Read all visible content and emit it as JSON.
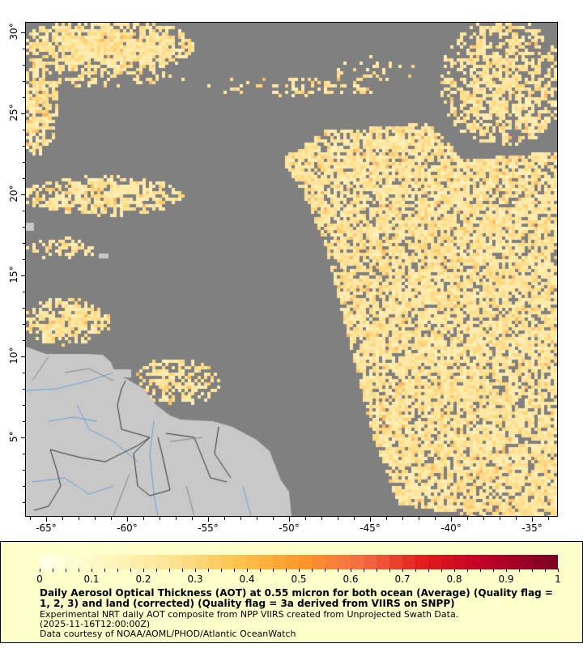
{
  "map": {
    "lon_range": [
      -66.25,
      -33.45
    ],
    "lat_range": [
      0.15,
      30.6
    ],
    "colors": {
      "ocean_nodata": "#808080",
      "land": "#c8c8c8",
      "rivers": "#6aa0d8",
      "borders": "#333333"
    },
    "lat_ticks": [
      "30°",
      "25°",
      "20°",
      "15°",
      "10°",
      "5°"
    ],
    "lat_values": [
      30,
      25,
      20,
      15,
      10,
      5
    ],
    "lon_ticks": [
      "-65°",
      "-60°",
      "-55°",
      "-50°",
      "-45°",
      "-40°",
      "-35°"
    ],
    "lon_values": [
      -65,
      -60,
      -55,
      -50,
      -45,
      -40,
      -35
    ]
  },
  "legend": {
    "colorbar_range": [
      0,
      1
    ],
    "colorbar_colors": [
      "#ffffe5",
      "#fff7bc",
      "#fee391",
      "#fec44f",
      "#fe9929",
      "#f46d43",
      "#e31a1c",
      "#bd0026",
      "#800026"
    ],
    "tick_labels": [
      "0",
      "0.1",
      "0.2",
      "0.3",
      "0.4",
      "0.5",
      "0.6",
      "0.7",
      "0.8",
      "0.9",
      "1"
    ],
    "title": "Daily Aerosol Optical Thickness (AOT) at 0.55 micron for both ocean (Average) (Quality flag = 1, 2, 3) and land (corrected) (Quality flag = 3a derived from VIIRS on SNPP)",
    "line1": "Experimental NRT daily AOT composite from NPP VIIRS created from Unprojected Swath Data.",
    "line2": "(2025-11-16T12:00:00Z)",
    "line3": "Data courtesy of NOAA/AOML/PHOD/Atlantic OceanWatch"
  }
}
